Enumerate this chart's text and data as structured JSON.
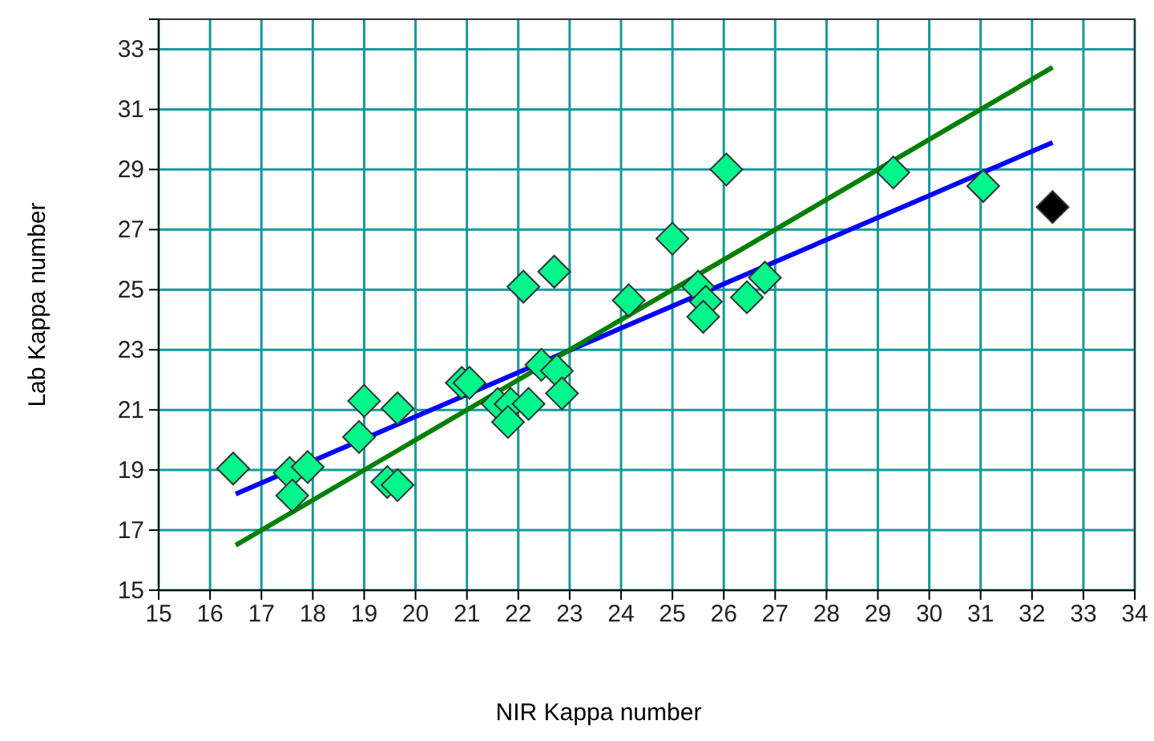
{
  "chart_data": {
    "type": "scatter",
    "xlabel": "NIR Kappa number",
    "ylabel": "Lab Kappa number",
    "xlim": [
      15,
      34
    ],
    "xticks": [
      15,
      16,
      17,
      18,
      19,
      20,
      21,
      22,
      23,
      24,
      25,
      26,
      27,
      28,
      29,
      30,
      31,
      32,
      33,
      34
    ],
    "ylim": [
      15,
      34
    ],
    "yticks": [
      15,
      17,
      19,
      21,
      23,
      25,
      27,
      29,
      31,
      33
    ],
    "grid": true,
    "marker": "diamond",
    "series": [
      {
        "color": "#00f58a",
        "x": [
          16.45,
          17.55,
          17.6,
          17.9,
          19.0,
          18.9,
          19.45,
          19.65,
          19.65,
          20.9,
          21.05,
          21.6,
          21.85,
          21.8,
          22.2,
          22.1,
          22.7,
          22.45,
          22.75,
          22.85,
          24.15,
          25.0,
          25.5,
          25.65,
          25.6,
          26.05,
          26.45,
          26.8,
          29.3,
          31.05
        ],
        "values": [
          19.05,
          18.9,
          18.15,
          19.1,
          21.3,
          20.1,
          18.6,
          18.5,
          21.05,
          21.9,
          21.9,
          21.2,
          21.2,
          20.6,
          21.2,
          25.1,
          25.6,
          22.5,
          22.3,
          21.55,
          24.65,
          26.7,
          25.1,
          24.6,
          24.1,
          29.0,
          24.75,
          25.4,
          28.9,
          28.45
        ]
      },
      {
        "color": "#000000",
        "x": [
          32.4
        ],
        "values": [
          27.75
        ]
      },
      {
        "type": "line",
        "color": "#0000ff",
        "marker": "none",
        "x": [
          16.5,
          32.4
        ],
        "values": [
          18.2,
          29.9
        ]
      },
      {
        "type": "line",
        "color": "#008000",
        "marker": "none",
        "x": [
          16.5,
          32.4
        ],
        "values": [
          16.5,
          32.4
        ]
      }
    ]
  }
}
